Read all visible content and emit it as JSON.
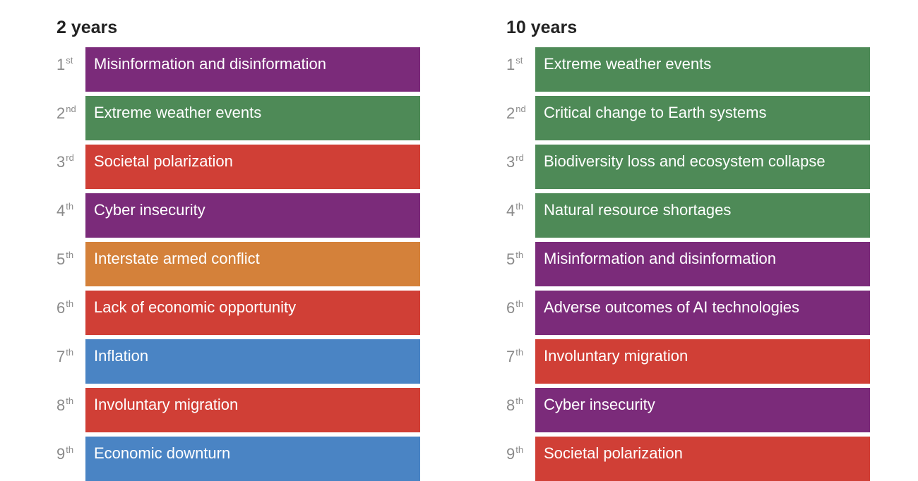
{
  "columns": [
    {
      "title": "2 years",
      "items": [
        {
          "rank": "1",
          "suffix": "st",
          "label": "Misinformation and disinformation",
          "color": "#7b2b7a"
        },
        {
          "rank": "2",
          "suffix": "nd",
          "label": "Extreme weather events",
          "color": "#4e8a57"
        },
        {
          "rank": "3",
          "suffix": "rd",
          "label": "Societal polarization",
          "color": "#d03f36"
        },
        {
          "rank": "4",
          "suffix": "th",
          "label": "Cyber insecurity",
          "color": "#7b2b7a"
        },
        {
          "rank": "5",
          "suffix": "th",
          "label": "Interstate armed conflict",
          "color": "#d4813a"
        },
        {
          "rank": "6",
          "suffix": "th",
          "label": "Lack of economic opportunity",
          "color": "#d03f36"
        },
        {
          "rank": "7",
          "suffix": "th",
          "label": "Inflation",
          "color": "#4a84c4"
        },
        {
          "rank": "8",
          "suffix": "th",
          "label": "Involuntary migration",
          "color": "#d03f36"
        },
        {
          "rank": "9",
          "suffix": "th",
          "label": "Economic downturn",
          "color": "#4a84c4"
        }
      ]
    },
    {
      "title": "10 years",
      "items": [
        {
          "rank": "1",
          "suffix": "st",
          "label": "Extreme weather events",
          "color": "#4e8a57"
        },
        {
          "rank": "2",
          "suffix": "nd",
          "label": "Critical change to Earth systems",
          "color": "#4e8a57"
        },
        {
          "rank": "3",
          "suffix": "rd",
          "label": "Biodiversity loss and ecosystem collapse",
          "color": "#4e8a57"
        },
        {
          "rank": "4",
          "suffix": "th",
          "label": "Natural resource shortages",
          "color": "#4e8a57"
        },
        {
          "rank": "5",
          "suffix": "th",
          "label": "Misinformation and disinformation",
          "color": "#7b2b7a"
        },
        {
          "rank": "6",
          "suffix": "th",
          "label": "Adverse outcomes of AI technologies",
          "color": "#7b2b7a"
        },
        {
          "rank": "7",
          "suffix": "th",
          "label": "Involuntary migration",
          "color": "#d03f36"
        },
        {
          "rank": "8",
          "suffix": "th",
          "label": "Cyber insecurity",
          "color": "#7b2b7a"
        },
        {
          "rank": "9",
          "suffix": "th",
          "label": "Societal polarization",
          "color": "#d03f36"
        }
      ]
    }
  ]
}
